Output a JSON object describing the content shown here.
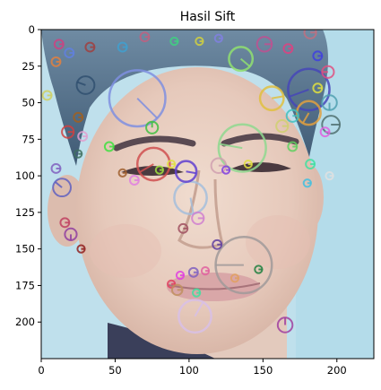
{
  "chart_data": {
    "type": "image",
    "title": "Hasil Sift",
    "xlim": [
      0,
      225
    ],
    "ylim": [
      225,
      0
    ],
    "x_ticks": [
      0,
      50,
      100,
      150,
      200
    ],
    "y_ticks": [
      0,
      25,
      50,
      75,
      100,
      125,
      150,
      175,
      200
    ],
    "keypoints": [
      {
        "x": 65,
        "y": 47,
        "r": 19,
        "angle": 45,
        "color": "#7f8fe0"
      },
      {
        "x": 136,
        "y": 81,
        "r": 16,
        "angle": 190,
        "color": "#8fd88f"
      },
      {
        "x": 137,
        "y": 161,
        "r": 19,
        "angle": 180,
        "color": "#a09a9a"
      },
      {
        "x": 181,
        "y": 41,
        "r": 14,
        "angle": 160,
        "color": "#4747b8"
      },
      {
        "x": 76,
        "y": 92,
        "r": 11,
        "angle": 150,
        "color": "#d05050"
      },
      {
        "x": 101,
        "y": 115,
        "r": 11,
        "angle": 80,
        "color": "#a4bedc"
      },
      {
        "x": 104,
        "y": 196,
        "r": 11,
        "angle": 300,
        "color": "#d8c0e8"
      },
      {
        "x": 135,
        "y": 20,
        "r": 8,
        "angle": 40,
        "color": "#90e070"
      },
      {
        "x": 156,
        "y": 47,
        "r": 8,
        "angle": 350,
        "color": "#e0c040"
      },
      {
        "x": 181,
        "y": 57,
        "r": 8,
        "angle": 120,
        "color": "#e0a040"
      },
      {
        "x": 98,
        "y": 97,
        "r": 7,
        "angle": 10,
        "color": "#6040d0"
      },
      {
        "x": 30,
        "y": 38,
        "r": 6,
        "angle": 200,
        "color": "#305070"
      },
      {
        "x": 14,
        "y": 108,
        "r": 6,
        "angle": 220,
        "color": "#6060c0"
      },
      {
        "x": 196,
        "y": 65,
        "r": 6,
        "angle": 0,
        "color": "#507070"
      },
      {
        "x": 195,
        "y": 50,
        "r": 5,
        "angle": 90,
        "color": "#50a0b0"
      },
      {
        "x": 194,
        "y": 29,
        "r": 4,
        "angle": 180,
        "color": "#e05080"
      },
      {
        "x": 75,
        "y": 67,
        "r": 4,
        "angle": 270,
        "color": "#40c040"
      },
      {
        "x": 165,
        "y": 202,
        "r": 5,
        "angle": 270,
        "color": "#a040a0"
      },
      {
        "x": 20,
        "y": 140,
        "r": 4,
        "angle": 90,
        "color": "#9040a0"
      },
      {
        "x": 106,
        "y": 129,
        "r": 4,
        "angle": 0,
        "color": "#d080d0"
      },
      {
        "x": 182,
        "y": 2,
        "r": 4,
        "angle": 0,
        "color": "#c07080"
      },
      {
        "x": 170,
        "y": 59,
        "r": 4,
        "angle": 0,
        "color": "#40c0c0"
      },
      {
        "x": 120,
        "y": 93,
        "r": 5,
        "angle": 0,
        "color": "#d0a0b0"
      },
      {
        "x": 163,
        "y": 66,
        "r": 4,
        "angle": 0,
        "color": "#d0d070"
      },
      {
        "x": 12,
        "y": 10,
        "r": 3,
        "angle": 0,
        "color": "#d04080"
      },
      {
        "x": 19,
        "y": 16,
        "r": 3,
        "angle": 0,
        "color": "#6080e0"
      },
      {
        "x": 33,
        "y": 12,
        "r": 3,
        "angle": 0,
        "color": "#a04040"
      },
      {
        "x": 55,
        "y": 12,
        "r": 3,
        "angle": 0,
        "color": "#40a0d0"
      },
      {
        "x": 70,
        "y": 5,
        "r": 3,
        "angle": 0,
        "color": "#c06080"
      },
      {
        "x": 90,
        "y": 8,
        "r": 2.5,
        "angle": 0,
        "color": "#40d080"
      },
      {
        "x": 107,
        "y": 8,
        "r": 2.5,
        "angle": 0,
        "color": "#d0d040"
      },
      {
        "x": 120,
        "y": 6,
        "r": 2.5,
        "angle": 0,
        "color": "#8080e0"
      },
      {
        "x": 151,
        "y": 10,
        "r": 5,
        "angle": 0,
        "color": "#c05090"
      },
      {
        "x": 167,
        "y": 13,
        "r": 3,
        "angle": 0,
        "color": "#e04080"
      },
      {
        "x": 187,
        "y": 18,
        "r": 3,
        "angle": 0,
        "color": "#4040e0"
      },
      {
        "x": 187,
        "y": 40,
        "r": 3,
        "angle": 0,
        "color": "#e0e040"
      },
      {
        "x": 192,
        "y": 70,
        "r": 3,
        "angle": 0,
        "color": "#e060e0"
      },
      {
        "x": 182,
        "y": 92,
        "r": 3,
        "angle": 0,
        "color": "#40e0a0"
      },
      {
        "x": 170,
        "y": 80,
        "r": 3,
        "angle": 0,
        "color": "#60d060"
      },
      {
        "x": 10,
        "y": 22,
        "r": 3,
        "angle": 0,
        "color": "#e08040"
      },
      {
        "x": 4,
        "y": 45,
        "r": 3,
        "angle": 0,
        "color": "#d0d060"
      },
      {
        "x": 25,
        "y": 60,
        "r": 3,
        "angle": 0,
        "color": "#a06020"
      },
      {
        "x": 18,
        "y": 70,
        "r": 4,
        "angle": 0,
        "color": "#d04040"
      },
      {
        "x": 28,
        "y": 73,
        "r": 3,
        "angle": 0,
        "color": "#e0a0d0"
      },
      {
        "x": 25,
        "y": 85,
        "r": 2.5,
        "angle": 0,
        "color": "#407060"
      },
      {
        "x": 10,
        "y": 95,
        "r": 3,
        "angle": 0,
        "color": "#8060c0"
      },
      {
        "x": 16,
        "y": 132,
        "r": 3,
        "angle": 0,
        "color": "#c04060"
      },
      {
        "x": 27,
        "y": 150,
        "r": 2.5,
        "angle": 0,
        "color": "#902020"
      },
      {
        "x": 46,
        "y": 80,
        "r": 3,
        "angle": 0,
        "color": "#40e040"
      },
      {
        "x": 63,
        "y": 103,
        "r": 3,
        "angle": 0,
        "color": "#e080e0"
      },
      {
        "x": 55,
        "y": 98,
        "r": 2.5,
        "angle": 0,
        "color": "#a06030"
      },
      {
        "x": 96,
        "y": 136,
        "r": 3,
        "angle": 0,
        "color": "#a05060"
      },
      {
        "x": 119,
        "y": 147,
        "r": 3,
        "angle": 0,
        "color": "#6040a0"
      },
      {
        "x": 103,
        "y": 166,
        "r": 3,
        "angle": 0,
        "color": "#8060c0"
      },
      {
        "x": 111,
        "y": 165,
        "r": 2.5,
        "angle": 0,
        "color": "#e060a0"
      },
      {
        "x": 94,
        "y": 168,
        "r": 2.5,
        "angle": 0,
        "color": "#e040e0"
      },
      {
        "x": 88,
        "y": 174,
        "r": 2.5,
        "angle": 0,
        "color": "#e04060"
      },
      {
        "x": 92,
        "y": 178,
        "r": 3.5,
        "angle": 0,
        "color": "#c09060"
      },
      {
        "x": 105,
        "y": 180,
        "r": 2.5,
        "angle": 0,
        "color": "#40e0a0"
      },
      {
        "x": 147,
        "y": 164,
        "r": 2.5,
        "angle": 0,
        "color": "#208040"
      },
      {
        "x": 131,
        "y": 170,
        "r": 2.5,
        "angle": 0,
        "color": "#e0a060"
      },
      {
        "x": 180,
        "y": 105,
        "r": 2.5,
        "angle": 0,
        "color": "#40c0e0"
      },
      {
        "x": 195,
        "y": 100,
        "r": 2.5,
        "angle": 0,
        "color": "#e0e0e0"
      },
      {
        "x": 140,
        "y": 92,
        "r": 2.5,
        "angle": 0,
        "color": "#e0e040"
      },
      {
        "x": 125,
        "y": 96,
        "r": 2.5,
        "angle": 0,
        "color": "#8040e0"
      },
      {
        "x": 88,
        "y": 92,
        "r": 2.5,
        "angle": 0,
        "color": "#e0e040"
      },
      {
        "x": 80,
        "y": 96,
        "r": 2.5,
        "angle": 0,
        "color": "#a0e040"
      }
    ],
    "colors": {
      "background": "#bfe0ec",
      "skin": "#e8cfc0",
      "hair": "#4f6f8a",
      "shirt": "#3a3f5a"
    }
  }
}
